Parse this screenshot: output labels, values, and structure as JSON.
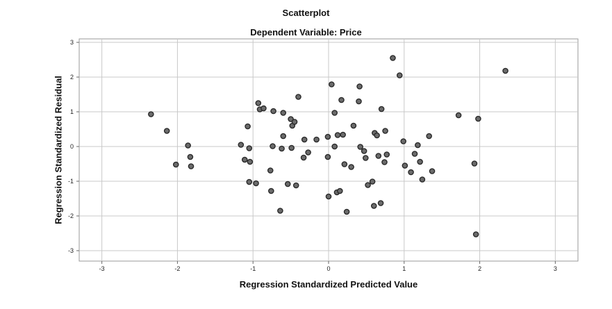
{
  "chart_data": {
    "type": "scatter",
    "title": "Scatterplot",
    "subtitle": "Dependent Variable: Price",
    "xlabel": "Regression Standardized Predicted Value",
    "ylabel": "Regression Standardized Residual",
    "xlim": [
      -3.3,
      3.3
    ],
    "ylim": [
      -3.3,
      3.1
    ],
    "xticks": [
      -3,
      -2,
      -1,
      0,
      1,
      2,
      3
    ],
    "yticks": [
      -3,
      -2,
      -1,
      0,
      1,
      2,
      3
    ],
    "grid": true,
    "marker_color": "#6b6b6b",
    "marker_edge": "#2a2a2a",
    "points": [
      [
        -2.35,
        0.93
      ],
      [
        -2.14,
        0.45
      ],
      [
        -2.02,
        -0.52
      ],
      [
        -1.86,
        0.03
      ],
      [
        -1.83,
        -0.3
      ],
      [
        -1.82,
        -0.57
      ],
      [
        -1.16,
        0.05
      ],
      [
        -1.11,
        -0.38
      ],
      [
        -1.07,
        0.58
      ],
      [
        -1.05,
        -0.05
      ],
      [
        -1.04,
        -0.44
      ],
      [
        -1.05,
        -1.02
      ],
      [
        -0.96,
        -1.06
      ],
      [
        -0.93,
        1.25
      ],
      [
        -0.91,
        1.07
      ],
      [
        -0.86,
        1.1
      ],
      [
        -0.77,
        -0.69
      ],
      [
        -0.76,
        -1.28
      ],
      [
        -0.74,
        0.01
      ],
      [
        -0.73,
        1.02
      ],
      [
        -0.64,
        -1.85
      ],
      [
        -0.62,
        -0.06
      ],
      [
        -0.6,
        0.97
      ],
      [
        -0.6,
        0.3
      ],
      [
        -0.54,
        -1.08
      ],
      [
        -0.5,
        0.79
      ],
      [
        -0.49,
        -0.04
      ],
      [
        -0.48,
        0.6
      ],
      [
        -0.45,
        0.71
      ],
      [
        -0.43,
        -1.12
      ],
      [
        -0.4,
        1.43
      ],
      [
        -0.33,
        -0.32
      ],
      [
        -0.32,
        0.2
      ],
      [
        -0.27,
        -0.17
      ],
      [
        -0.16,
        0.2
      ],
      [
        -0.01,
        -0.3
      ],
      [
        -0.01,
        0.28
      ],
      [
        0.0,
        -1.44
      ],
      [
        0.04,
        1.79
      ],
      [
        0.08,
        0.0
      ],
      [
        0.08,
        0.97
      ],
      [
        0.11,
        -1.32
      ],
      [
        0.12,
        0.33
      ],
      [
        0.15,
        -1.28
      ],
      [
        0.17,
        1.34
      ],
      [
        0.19,
        0.34
      ],
      [
        0.21,
        -0.51
      ],
      [
        0.24,
        -1.88
      ],
      [
        0.3,
        -0.59
      ],
      [
        0.33,
        0.6
      ],
      [
        0.4,
        1.3
      ],
      [
        0.41,
        1.73
      ],
      [
        0.42,
        -0.01
      ],
      [
        0.47,
        -0.13
      ],
      [
        0.49,
        -0.33
      ],
      [
        0.52,
        -1.11
      ],
      [
        0.58,
        -1.01
      ],
      [
        0.6,
        -1.71
      ],
      [
        0.61,
        0.39
      ],
      [
        0.64,
        0.32
      ],
      [
        0.66,
        -0.27
      ],
      [
        0.69,
        -1.63
      ],
      [
        0.7,
        1.08
      ],
      [
        0.74,
        -0.45
      ],
      [
        0.75,
        0.45
      ],
      [
        0.77,
        -0.23
      ],
      [
        0.85,
        2.55
      ],
      [
        0.94,
        2.05
      ],
      [
        0.99,
        0.15
      ],
      [
        1.01,
        -0.55
      ],
      [
        1.09,
        -0.74
      ],
      [
        1.14,
        -0.21
      ],
      [
        1.18,
        0.04
      ],
      [
        1.21,
        -0.44
      ],
      [
        1.24,
        -0.95
      ],
      [
        1.33,
        0.3
      ],
      [
        1.37,
        -0.71
      ],
      [
        1.72,
        0.9
      ],
      [
        1.93,
        -0.49
      ],
      [
        1.95,
        -2.53
      ],
      [
        1.98,
        0.8
      ],
      [
        2.34,
        2.18
      ]
    ]
  }
}
